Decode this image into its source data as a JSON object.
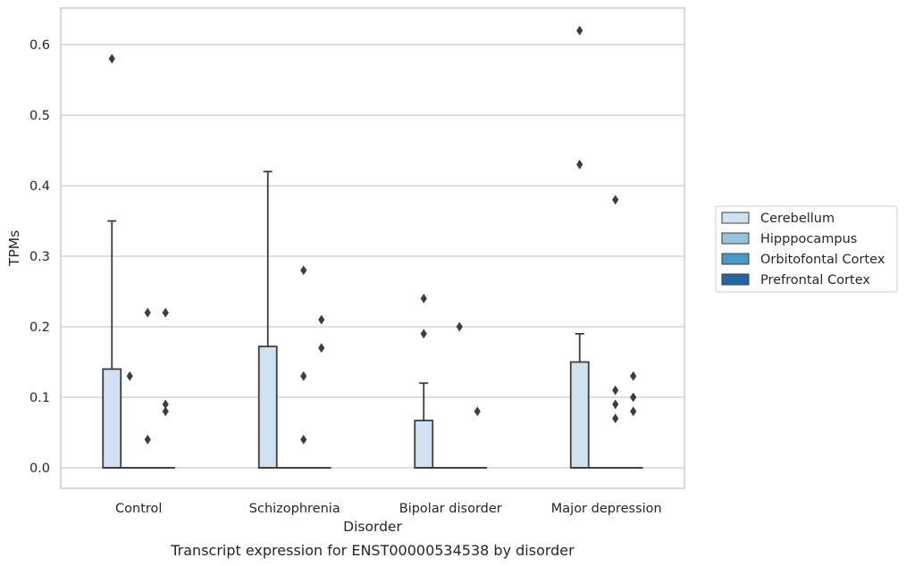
{
  "chart_data": {
    "type": "box",
    "xlabel": "Disorder",
    "ylabel": "TPMs",
    "caption": "Transcript expression for ENST00000534538 by disorder",
    "ylim": [
      -0.03,
      0.65
    ],
    "yticks": [
      "0.0",
      "0.1",
      "0.2",
      "0.3",
      "0.4",
      "0.5",
      "0.6"
    ],
    "grid": true,
    "legend_position": "right",
    "categories": [
      "Control",
      "Schizophrenia",
      "Bipolar disorder",
      "Major depression"
    ],
    "series": [
      {
        "name": "Cerebellum",
        "color": "#d0e1f2",
        "boxes": [
          {
            "q1": 0.0,
            "median": 0.0,
            "q3": 0.14,
            "whisker_low": 0.0,
            "whisker_high": 0.35,
            "outliers": [
              0.58
            ]
          },
          {
            "q1": 0.0,
            "median": 0.0,
            "q3": 0.172,
            "whisker_low": 0.0,
            "whisker_high": 0.42,
            "outliers": []
          },
          {
            "q1": 0.0,
            "median": 0.0,
            "q3": 0.067,
            "whisker_low": 0.0,
            "whisker_high": 0.12,
            "outliers": [
              0.24,
              0.19
            ]
          },
          {
            "q1": 0.0,
            "median": 0.0,
            "q3": 0.15,
            "whisker_low": 0.0,
            "whisker_high": 0.19,
            "outliers": [
              0.62,
              0.43
            ]
          }
        ]
      },
      {
        "name": "Hipppocampus",
        "color": "#94c4df",
        "boxes": [
          {
            "q1": 0.0,
            "median": 0.0,
            "q3": 0.0,
            "whisker_low": 0.0,
            "whisker_high": 0.0,
            "outliers": [
              0.13
            ]
          },
          {
            "q1": 0.0,
            "median": 0.0,
            "q3": 0.0,
            "whisker_low": 0.0,
            "whisker_high": 0.0,
            "outliers": []
          },
          {
            "q1": 0.0,
            "median": 0.0,
            "q3": 0.0,
            "whisker_low": 0.0,
            "whisker_high": 0.0,
            "outliers": []
          },
          {
            "q1": 0.0,
            "median": 0.0,
            "q3": 0.0,
            "whisker_low": 0.0,
            "whisker_high": 0.0,
            "outliers": []
          }
        ]
      },
      {
        "name": "Orbitofontal Cortex",
        "color": "#4a98c9",
        "boxes": [
          {
            "q1": 0.0,
            "median": 0.0,
            "q3": 0.0,
            "whisker_low": 0.0,
            "whisker_high": 0.0,
            "outliers": [
              0.04,
              0.22
            ]
          },
          {
            "q1": 0.0,
            "median": 0.0,
            "q3": 0.0,
            "whisker_low": 0.0,
            "whisker_high": 0.0,
            "outliers": [
              0.28,
              0.13,
              0.04
            ]
          },
          {
            "q1": 0.0,
            "median": 0.0,
            "q3": 0.0,
            "whisker_low": 0.0,
            "whisker_high": 0.0,
            "outliers": [
              0.2
            ]
          },
          {
            "q1": 0.0,
            "median": 0.0,
            "q3": 0.0,
            "whisker_low": 0.0,
            "whisker_high": 0.0,
            "outliers": [
              0.38,
              0.11,
              0.09,
              0.07
            ]
          }
        ]
      },
      {
        "name": "Prefrontal Cortex",
        "color": "#2366a8",
        "boxes": [
          {
            "q1": 0.0,
            "median": 0.0,
            "q3": 0.0,
            "whisker_low": 0.0,
            "whisker_high": 0.0,
            "outliers": [
              0.22,
              0.09,
              0.08
            ]
          },
          {
            "q1": 0.0,
            "median": 0.0,
            "q3": 0.0,
            "whisker_low": 0.0,
            "whisker_high": 0.0,
            "outliers": [
              0.21,
              0.17
            ]
          },
          {
            "q1": 0.0,
            "median": 0.0,
            "q3": 0.0,
            "whisker_low": 0.0,
            "whisker_high": 0.0,
            "outliers": [
              0.08
            ]
          },
          {
            "q1": 0.0,
            "median": 0.0,
            "q3": 0.0,
            "whisker_low": 0.0,
            "whisker_high": 0.0,
            "outliers": [
              0.13,
              0.1,
              0.08
            ]
          }
        ]
      }
    ]
  }
}
